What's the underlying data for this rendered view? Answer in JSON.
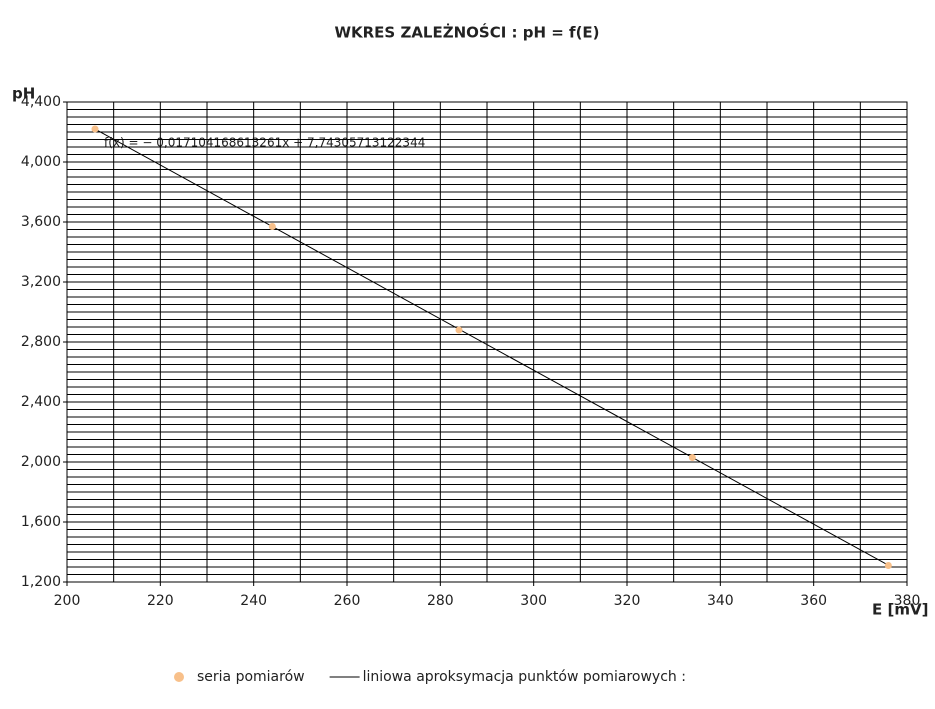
{
  "chart_data": {
    "type": "scatter",
    "title": "WKRES ZALEŻNOŚCI : pH = f(E)",
    "y_label": "pH",
    "x_label": "E [mV]",
    "annotation": "f(x) = − 0,017104168613261x + 7,74305713122344",
    "xlim": [
      200,
      380
    ],
    "xticks": [
      200,
      220,
      240,
      260,
      280,
      300,
      320,
      340,
      360,
      380
    ],
    "x_minor_ticks": [
      210,
      230,
      250,
      270,
      290,
      310,
      330,
      350,
      370
    ],
    "ylim": [
      1.2,
      4.4
    ],
    "yticks": [
      {
        "value": 1.2,
        "label": "1,200"
      },
      {
        "value": 1.6,
        "label": "1,600"
      },
      {
        "value": 2.0,
        "label": "2,000"
      },
      {
        "value": 2.4,
        "label": "2,400"
      },
      {
        "value": 2.8,
        "label": "2,800"
      },
      {
        "value": 3.2,
        "label": "3,200"
      },
      {
        "value": 3.6,
        "label": "3,600"
      },
      {
        "value": 4.0,
        "label": "4,000"
      },
      {
        "value": 4.4,
        "label": "4,400"
      }
    ],
    "y_minor_ticks": [
      1.25,
      1.3,
      1.35,
      1.4,
      1.45,
      1.5,
      1.55,
      1.65,
      1.7,
      1.75,
      1.8,
      1.85,
      1.9,
      1.95,
      2.05,
      2.1,
      2.15,
      2.2,
      2.25,
      2.3,
      2.35,
      2.45,
      2.5,
      2.55,
      2.6,
      2.65,
      2.7,
      2.75,
      2.85,
      2.9,
      2.95,
      3.0,
      3.05,
      3.1,
      3.15,
      3.25,
      3.3,
      3.35,
      3.4,
      3.45,
      3.5,
      3.55,
      3.65,
      3.7,
      3.75,
      3.8,
      3.85,
      3.9,
      3.95,
      4.05,
      4.1,
      4.15,
      4.2,
      4.25,
      4.3,
      4.35
    ],
    "grid": true,
    "series": [
      {
        "name": "seria pomiarów",
        "color": "#f8c08a",
        "x": [
          206,
          244,
          284,
          334,
          376
        ],
        "values": [
          4.22,
          3.57,
          2.88,
          2.03,
          1.31
        ]
      },
      {
        "name": "liniowa aproksymacja punktów pomiarowych :",
        "color": "#000000",
        "type": "line",
        "x": [
          206,
          376
        ],
        "values": [
          4.2195,
          1.3118
        ]
      }
    ]
  }
}
